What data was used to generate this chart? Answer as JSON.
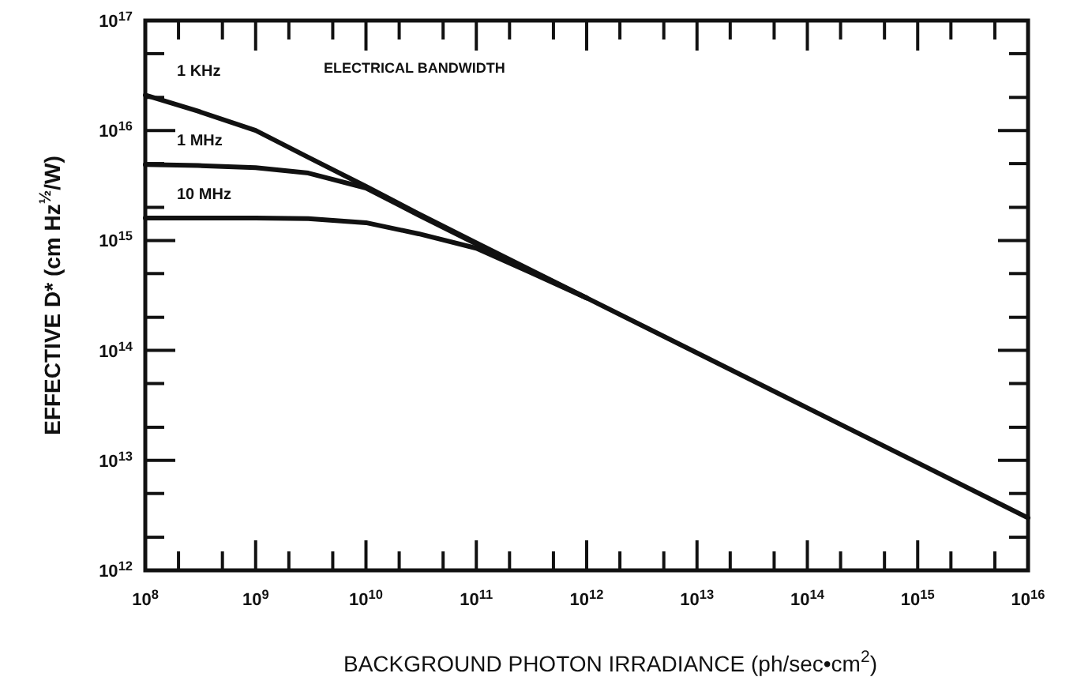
{
  "chart_data": {
    "type": "line",
    "xlabel": "BACKGROUND PHOTON IRRADIANCE (ph/sec•cm$^{2}$)",
    "ylabel": "EFFECTIVE  D* (cm Hz$^{½}$/W)",
    "log": "xy",
    "grid": false,
    "marker": "none",
    "line_style": "solid",
    "annotations": [
      "ELECTRICAL BANDWIDTH"
    ],
    "xlim": [
      100000000.0,
      1e+16
    ],
    "ylim": [
      1000000000000.0,
      1e+17
    ],
    "xticks": [
      {
        "value": 100000000.0,
        "label": "10$^{8}$"
      },
      {
        "value": 200000000.0,
        "label": null
      },
      {
        "value": 500000000.0,
        "label": null
      },
      {
        "value": 1000000000.0,
        "label": "10$^{9}$"
      },
      {
        "value": 2000000000.0,
        "label": null
      },
      {
        "value": 5000000000.0,
        "label": null
      },
      {
        "value": 10000000000.0,
        "label": "10$^{10}$"
      },
      {
        "value": 20000000000.0,
        "label": null
      },
      {
        "value": 50000000000.0,
        "label": null
      },
      {
        "value": 100000000000.0,
        "label": "10$^{11}$"
      },
      {
        "value": 200000000000.0,
        "label": null
      },
      {
        "value": 500000000000.0,
        "label": null
      },
      {
        "value": 1000000000000.0,
        "label": "10$^{12}$"
      },
      {
        "value": 2000000000000.0,
        "label": null
      },
      {
        "value": 5000000000000.0,
        "label": null
      },
      {
        "value": 10000000000000.0,
        "label": "10$^{13}$"
      },
      {
        "value": 20000000000000.0,
        "label": null
      },
      {
        "value": 50000000000000.0,
        "label": null
      },
      {
        "value": 100000000000000.0,
        "label": "10$^{14}$"
      },
      {
        "value": 200000000000000.0,
        "label": null
      },
      {
        "value": 500000000000000.0,
        "label": null
      },
      {
        "value": 1000000000000000.0,
        "label": "10$^{15}$"
      },
      {
        "value": 2000000000000000.0,
        "label": null
      },
      {
        "value": 5000000000000000.0,
        "label": null
      },
      {
        "value": 1e+16,
        "label": "10$^{16}$"
      }
    ],
    "yticks": [
      {
        "value": 1000000000000.0,
        "label": "10$^{12}$"
      },
      {
        "value": 2000000000000.0,
        "label": null
      },
      {
        "value": 5000000000000.0,
        "label": null
      },
      {
        "value": 10000000000000.0,
        "label": "10$^{13}$"
      },
      {
        "value": 20000000000000.0,
        "label": null
      },
      {
        "value": 50000000000000.0,
        "label": null
      },
      {
        "value": 100000000000000.0,
        "label": "10$^{14}$"
      },
      {
        "value": 200000000000000.0,
        "label": null
      },
      {
        "value": 500000000000000.0,
        "label": null
      },
      {
        "value": 1000000000000000.0,
        "label": "10$^{15}$"
      },
      {
        "value": 2000000000000000.0,
        "label": null
      },
      {
        "value": 5000000000000000.0,
        "label": null
      },
      {
        "value": 1e+16,
        "label": "10$^{16}$"
      },
      {
        "value": 2e+16,
        "label": null
      },
      {
        "value": 5e+16,
        "label": null
      },
      {
        "value": 1e+17,
        "label": "10$^{17}$"
      }
    ],
    "series": [
      {
        "name": "1 KHz",
        "color": "#111111",
        "x": [
          100000000.0,
          300000000.0,
          1000000000.0,
          3000000000.0,
          10000000000.0,
          30000000000.0,
          100000000000.0,
          1000000000000.0,
          10000000000000.0,
          100000000000000.0,
          1000000000000000.0,
          1e+16
        ],
        "values": [
          2.1e+16,
          1.5e+16,
          1e+16,
          5700000000000000.0,
          3100000000000000.0,
          1750000000000000.0,
          950000000000000.0,
          300000000000000.0,
          95000000000000.0,
          30000000000000.0,
          9500000000000.0,
          3000000000000.0
        ]
      },
      {
        "name": "1 MHz",
        "color": "#111111",
        "x": [
          100000000.0,
          300000000.0,
          1000000000.0,
          3000000000.0,
          10000000000.0,
          30000000000.0,
          100000000000.0,
          300000000000.0,
          1000000000000.0
        ],
        "values": [
          4900000000000000.0,
          4800000000000000.0,
          4600000000000000.0,
          4100000000000000.0,
          3000000000000000.0,
          1700000000000000.0,
          930000000000000.0,
          540000000000000.0,
          300000000000000.0
        ]
      },
      {
        "name": "10 MHz",
        "color": "#111111",
        "x": [
          100000000.0,
          1000000000.0,
          3000000000.0,
          10000000000.0,
          30000000000.0,
          100000000000.0,
          300000000000.0,
          1000000000000.0
        ],
        "values": [
          1600000000000000.0,
          1600000000000000.0,
          1580000000000000.0,
          1450000000000000.0,
          1150000000000000.0,
          850000000000000.0,
          520000000000000.0,
          300000000000000.0
        ]
      }
    ]
  }
}
